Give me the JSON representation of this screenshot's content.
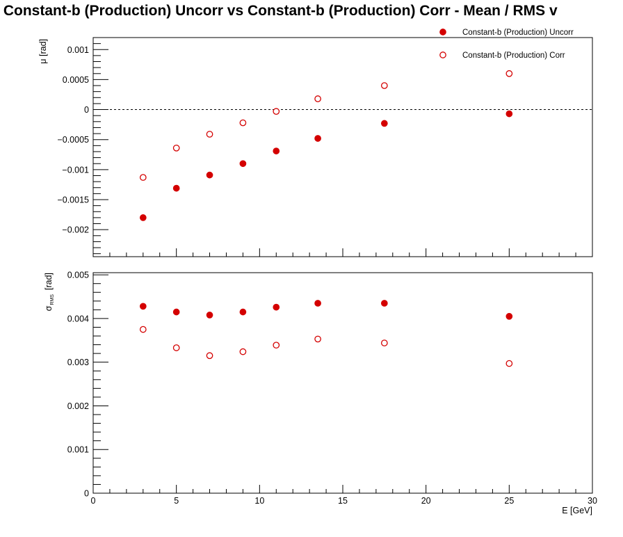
{
  "title": "-  Constant-b (Production) Uncorr vs Constant-b (Production) Corr  -  Mean / RMS v",
  "colors": {
    "marker": "#d40000",
    "frame": "#000000"
  },
  "chart_data": [
    {
      "type": "scatter",
      "panel": "top",
      "ylabel": "μ  [rad]",
      "xlim": [
        0,
        30
      ],
      "ylim": [
        -0.00245,
        0.0012
      ],
      "yticks": [
        -0.002,
        -0.0015,
        -0.001,
        -0.0005,
        0,
        0.0005,
        0.001
      ],
      "ytick_labels": [
        "−0.002",
        "−0.0015",
        "−0.001",
        "−0.0005",
        "0",
        "0.0005",
        "0.001"
      ],
      "reference_line": 0,
      "legend_position": "top-right",
      "series": [
        {
          "name": "Constant-b (Production) Uncorr",
          "marker": "filled-circle",
          "x": [
            3,
            5,
            7,
            9,
            11,
            13.5,
            17.5,
            25
          ],
          "y": [
            -0.0018,
            -0.00131,
            -0.00109,
            -0.0009,
            -0.00069,
            -0.00048,
            -0.00023,
            -7e-05
          ]
        },
        {
          "name": "Constant-b (Production) Corr",
          "marker": "open-circle",
          "x": [
            3,
            5,
            7,
            9,
            11,
            13.5,
            17.5,
            25
          ],
          "y": [
            -0.00113,
            -0.00064,
            -0.00041,
            -0.00022,
            -3e-05,
            0.00018,
            0.0004,
            0.0006
          ]
        }
      ]
    },
    {
      "type": "scatter",
      "panel": "bottom",
      "ylabel": "σ",
      "ylabel_sub": "RMS",
      "ylabel_unit": "[rad]",
      "xlabel": "E  [GeV]",
      "xlim": [
        0,
        30
      ],
      "ylim": [
        0,
        0.00505
      ],
      "xticks": [
        0,
        5,
        10,
        15,
        20,
        25,
        30
      ],
      "xtick_labels": [
        "0",
        "5",
        "10",
        "15",
        "20",
        "25",
        "30"
      ],
      "yticks": [
        0,
        0.001,
        0.002,
        0.003,
        0.004,
        0.005
      ],
      "ytick_labels": [
        "0",
        "0.001",
        "0.002",
        "0.003",
        "0.004",
        "0.005"
      ],
      "series": [
        {
          "name": "Constant-b (Production) Uncorr",
          "marker": "filled-circle",
          "x": [
            3,
            5,
            7,
            9,
            11,
            13.5,
            17.5,
            25
          ],
          "y": [
            0.00428,
            0.00415,
            0.00408,
            0.00415,
            0.00426,
            0.00435,
            0.00435,
            0.00405
          ]
        },
        {
          "name": "Constant-b (Production) Corr",
          "marker": "open-circle",
          "x": [
            3,
            5,
            7,
            9,
            11,
            13.5,
            17.5,
            25
          ],
          "y": [
            0.00375,
            0.00333,
            0.00315,
            0.00324,
            0.00339,
            0.00353,
            0.00344,
            0.00297
          ]
        }
      ]
    }
  ]
}
